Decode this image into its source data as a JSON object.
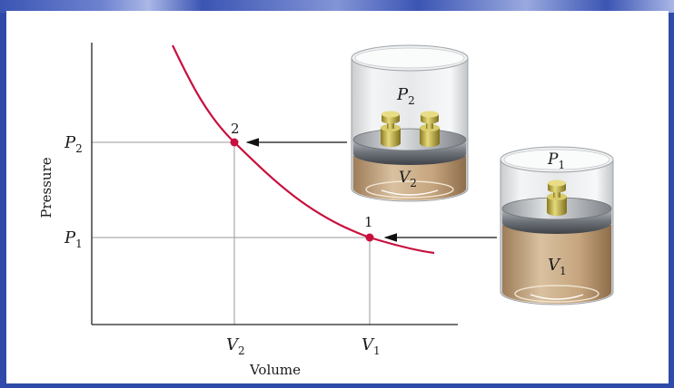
{
  "diagram": {
    "y_axis_label": "Pressure",
    "x_axis_label": "Volume",
    "y_ticks": [
      {
        "main": "P",
        "sub": "2"
      },
      {
        "main": "P",
        "sub": "1"
      }
    ],
    "x_ticks": [
      {
        "main": "V",
        "sub": "2"
      },
      {
        "main": "V",
        "sub": "1"
      }
    ],
    "points": [
      {
        "label": "2"
      },
      {
        "label": "1"
      }
    ],
    "cylinder_state_2": {
      "pressure_main": "P",
      "pressure_sub": "2",
      "volume_main": "V",
      "volume_sub": "2",
      "weights": 2
    },
    "cylinder_state_1": {
      "pressure_main": "P",
      "pressure_sub": "1",
      "volume_main": "V",
      "volume_sub": "1",
      "weights": 1
    },
    "colors": {
      "curve": "#c8103e",
      "point": "#c8103e",
      "axis": "#222222",
      "gridline": "#9a9a9a",
      "gas": "#b8936a",
      "weight": "#b7a437",
      "piston": "#6f747b",
      "background_frame": "#2f4aa8"
    }
  }
}
